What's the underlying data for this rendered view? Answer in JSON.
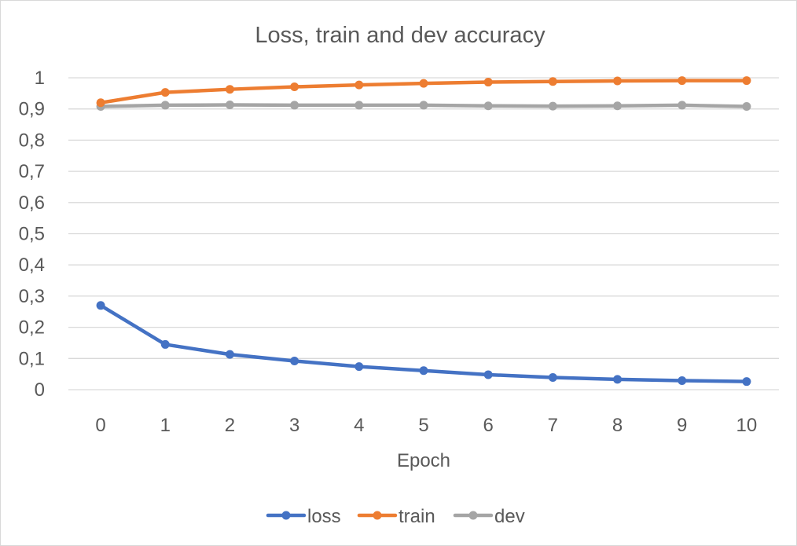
{
  "chart_data": {
    "type": "line",
    "title": "Loss, train and dev accuracy",
    "xlabel": "Epoch",
    "ylabel": "",
    "x": [
      0,
      1,
      2,
      3,
      4,
      5,
      6,
      7,
      8,
      9,
      10
    ],
    "x_tick_labels": [
      "0",
      "1",
      "2",
      "3",
      "4",
      "5",
      "6",
      "7",
      "8",
      "9",
      "10"
    ],
    "ylim": [
      0,
      1
    ],
    "y_ticks": [
      0,
      0.1,
      0.2,
      0.3,
      0.4,
      0.5,
      0.6,
      0.7,
      0.8,
      0.9,
      1
    ],
    "y_tick_labels": [
      "0",
      "0,1",
      "0,2",
      "0,3",
      "0,4",
      "0,5",
      "0,6",
      "0,7",
      "0,8",
      "0,9",
      "1"
    ],
    "grid": "horizontal",
    "legend_position": "bottom",
    "series": [
      {
        "name": "loss",
        "color": "#4472c4",
        "values": [
          0.27,
          0.145,
          0.113,
          0.092,
          0.074,
          0.061,
          0.048,
          0.039,
          0.033,
          0.029,
          0.026
        ]
      },
      {
        "name": "train",
        "color": "#ed7d31",
        "values": [
          0.92,
          0.953,
          0.963,
          0.971,
          0.977,
          0.982,
          0.986,
          0.988,
          0.99,
          0.991,
          0.991
        ]
      },
      {
        "name": "dev",
        "color": "#a5a5a5",
        "values": [
          0.908,
          0.912,
          0.913,
          0.912,
          0.912,
          0.912,
          0.91,
          0.909,
          0.91,
          0.912,
          0.908
        ]
      }
    ]
  }
}
